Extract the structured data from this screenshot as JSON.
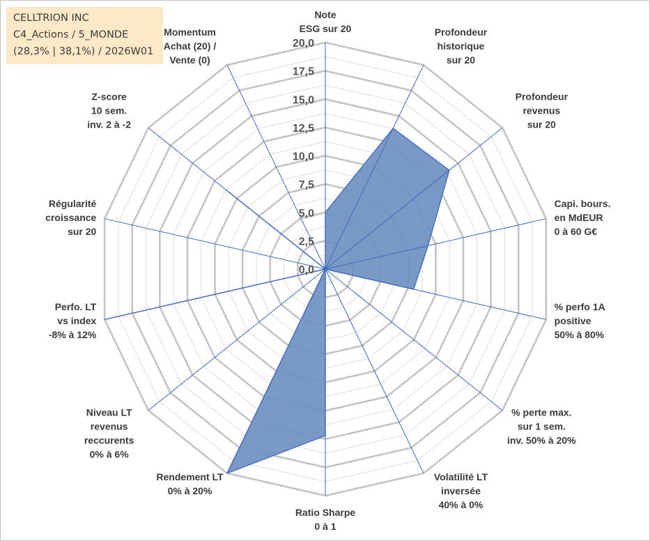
{
  "title": {
    "line1": "CELLTRION INC",
    "line2": "C4_Actions / 5_MONDE",
    "line3": "(28,3% | 38,1%) / 2026W01"
  },
  "colors": {
    "fill": "#7090c0",
    "stroke": "#4a72c4",
    "spoke": "#3f68c0",
    "grid_major": "#c4c4c4",
    "grid_minor": "#dcdcdc"
  },
  "chart_data": {
    "type": "radar",
    "title": "CELLTRION INC",
    "rmin": 0,
    "rmax": 20,
    "ticks": [
      "0,0",
      "2,5",
      "5,0",
      "7,5",
      "10,0",
      "12,5",
      "15,0",
      "17,5",
      "20,0"
    ],
    "categories": [
      {
        "label": [
          "Note",
          "ESG sur 20"
        ],
        "value": 5.0
      },
      {
        "label": [
          "Profondeur",
          "historique",
          "sur 20"
        ],
        "value": 13.8
      },
      {
        "label": [
          "Profondeur",
          "revenus",
          "sur 20"
        ],
        "value": 14.0
      },
      {
        "label": [
          "Capi. bours.",
          "en MdEUR",
          "0 à 60 G€"
        ],
        "value": 9.3
      },
      {
        "label": [
          "% perfo 1A",
          "positive",
          "50% à 80%"
        ],
        "value": 8.0
      },
      {
        "label": [
          "% perte max.",
          "sur 1 sem.",
          "inv. 50% à 20%"
        ],
        "value": 0.0
      },
      {
        "label": [
          "Volatilité LT",
          "inversée",
          "40% à 0%"
        ],
        "value": 0.0
      },
      {
        "label": [
          "Ratio Sharpe",
          "0 à 1"
        ],
        "value": 14.7
      },
      {
        "label": [
          "Rendement LT",
          "0% à 20%"
        ],
        "value": 20.0
      },
      {
        "label": [
          "Niveau LT",
          "revenus",
          "reccurents",
          "0% à 6%"
        ],
        "value": 0.0
      },
      {
        "label": [
          "Perfo. LT",
          "vs index",
          "-8% à 12%"
        ],
        "value": 20.0
      },
      {
        "label": [
          "Régularité",
          "croissance",
          "sur 20"
        ],
        "value": 0.0
      },
      {
        "label": [
          "Z-score",
          "10 sem.",
          "inv. 2 à -2"
        ],
        "value": 11.2
      },
      {
        "label": [
          "Momentum",
          "Achat (20) /",
          "Vente (0)"
        ],
        "value": 0.0
      }
    ]
  }
}
